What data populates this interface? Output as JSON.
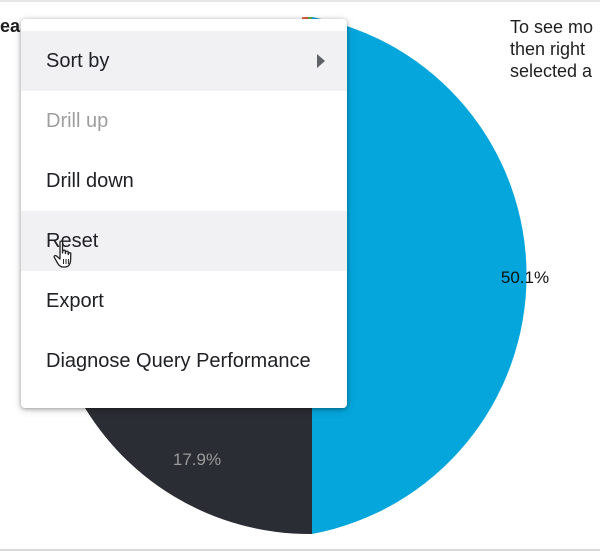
{
  "chart": {
    "title_fragment": "eas",
    "hint_lines": [
      "To see mo",
      "then right",
      "selected a"
    ]
  },
  "chart_data": {
    "type": "pie",
    "slices": [
      {
        "label": "50.1%",
        "value": 50.1,
        "color": "#05a6dc",
        "label_color": "#111111"
      },
      {
        "label": "17.9%",
        "value": 17.9,
        "color": "#2a2d33",
        "label_color": "#9a9a9a"
      }
    ]
  },
  "context_menu": {
    "items": [
      {
        "label": "Sort by",
        "state": "highlighted",
        "has_submenu": true
      },
      {
        "label": "Drill up",
        "state": "disabled"
      },
      {
        "label": "Drill down",
        "state": "normal"
      },
      {
        "label": "Reset",
        "state": "hovered"
      },
      {
        "label": "Export",
        "state": "normal"
      },
      {
        "label": "Diagnose Query Performance",
        "state": "normal"
      }
    ],
    "submenu_icon": "chevron-right-icon"
  },
  "cursor": {
    "icon": "hand-pointer-icon"
  }
}
